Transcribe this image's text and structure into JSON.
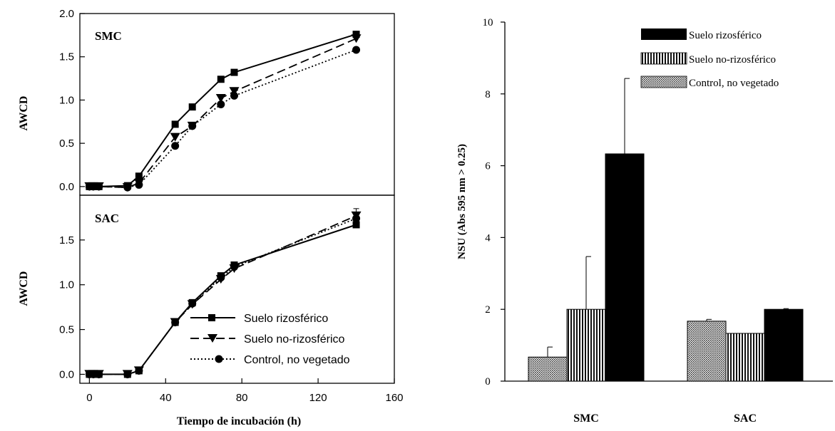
{
  "chart_data": [
    {
      "type": "line",
      "panel_label": "SMC",
      "xlabel": "",
      "ylabel": "AWCD",
      "xlim": [
        -5,
        160
      ],
      "ylim": [
        -0.1,
        2.0
      ],
      "yticks": [
        "0.0",
        "0.5",
        "1.0",
        "1.5",
        "2.0"
      ],
      "series": [
        {
          "name": "Suelo rizosférico",
          "marker": "square",
          "dash": "solid",
          "x": [
            0,
            2,
            5,
            20,
            26,
            45,
            54,
            69,
            76,
            140
          ],
          "y": [
            0.0,
            0.0,
            0.0,
            0.01,
            0.12,
            0.72,
            0.92,
            1.24,
            1.32,
            1.76
          ]
        },
        {
          "name": "Suelo no-rizosférico",
          "marker": "triangle-down",
          "dash": "dashed",
          "x": [
            0,
            2,
            5,
            20,
            26,
            45,
            54,
            69,
            76,
            140
          ],
          "y": [
            0.0,
            0.0,
            0.0,
            -0.01,
            0.04,
            0.57,
            0.7,
            1.02,
            1.1,
            1.71
          ]
        },
        {
          "name": "Control, no vegetado",
          "marker": "circle",
          "dash": "dotted",
          "x": [
            0,
            2,
            5,
            20,
            26,
            45,
            54,
            69,
            76,
            140
          ],
          "y": [
            0.0,
            0.0,
            0.0,
            -0.01,
            0.02,
            0.47,
            0.7,
            0.95,
            1.05,
            1.58
          ]
        }
      ]
    },
    {
      "type": "line",
      "panel_label": "SAC",
      "xlabel": "Tiempo de incubación (h)",
      "ylabel": "AWCD",
      "xlim": [
        -5,
        160
      ],
      "ylim": [
        -0.1,
        2.0
      ],
      "xticks": [
        "0",
        "40",
        "80",
        "120",
        "160"
      ],
      "yticks": [
        "0.0",
        "0.5",
        "1.0",
        "1.5"
      ],
      "legend": {
        "position": "lower-right"
      },
      "series": [
        {
          "name": "Suelo rizosférico",
          "marker": "square",
          "dash": "solid",
          "x": [
            0,
            2,
            5,
            20,
            26,
            45,
            54,
            69,
            76,
            140
          ],
          "y": [
            0.0,
            0.0,
            0.0,
            0.0,
            0.04,
            0.58,
            0.8,
            1.1,
            1.22,
            1.67
          ]
        },
        {
          "name": "Suelo no-rizosférico",
          "marker": "triangle-down",
          "dash": "dashed",
          "x": [
            0,
            2,
            5,
            20,
            26,
            45,
            54,
            69,
            76,
            140
          ],
          "y": [
            0.0,
            0.0,
            0.0,
            0.0,
            0.04,
            0.58,
            0.78,
            1.06,
            1.18,
            1.77
          ]
        },
        {
          "name": "Control, no vegetado",
          "marker": "circle",
          "dash": "dotted",
          "x": [
            0,
            2,
            5,
            20,
            26,
            45,
            54,
            69,
            76,
            140
          ],
          "y": [
            0.0,
            0.0,
            0.0,
            0.0,
            0.04,
            0.58,
            0.79,
            1.08,
            1.2,
            1.74
          ]
        }
      ],
      "error_bars": [
        {
          "series": "Suelo no-rizosférico",
          "x": 140,
          "plus": 0.08
        }
      ]
    },
    {
      "type": "bar",
      "xlabel": "",
      "ylabel": "NSU (Abs 595 nm > 0.25)",
      "ylim": [
        0,
        10
      ],
      "yticks": [
        "0",
        "2",
        "4",
        "6",
        "8",
        "10"
      ],
      "categories": [
        "SMC",
        "SAC"
      ],
      "legend": {
        "position": "top-right"
      },
      "series": [
        {
          "name": "Control, no vegetado",
          "pattern": "dots",
          "values": [
            0.67,
            1.67
          ],
          "errors": [
            0.28,
            0.05
          ]
        },
        {
          "name": "Suelo no-rizosférico",
          "pattern": "vertical-stripes",
          "values": [
            2.0,
            1.33
          ],
          "errors": [
            1.47,
            0.0
          ]
        },
        {
          "name": "Suelo rizosférico",
          "pattern": "solid-black",
          "values": [
            6.33,
            2.0
          ],
          "errors": [
            2.1,
            0.02
          ]
        }
      ]
    }
  ]
}
